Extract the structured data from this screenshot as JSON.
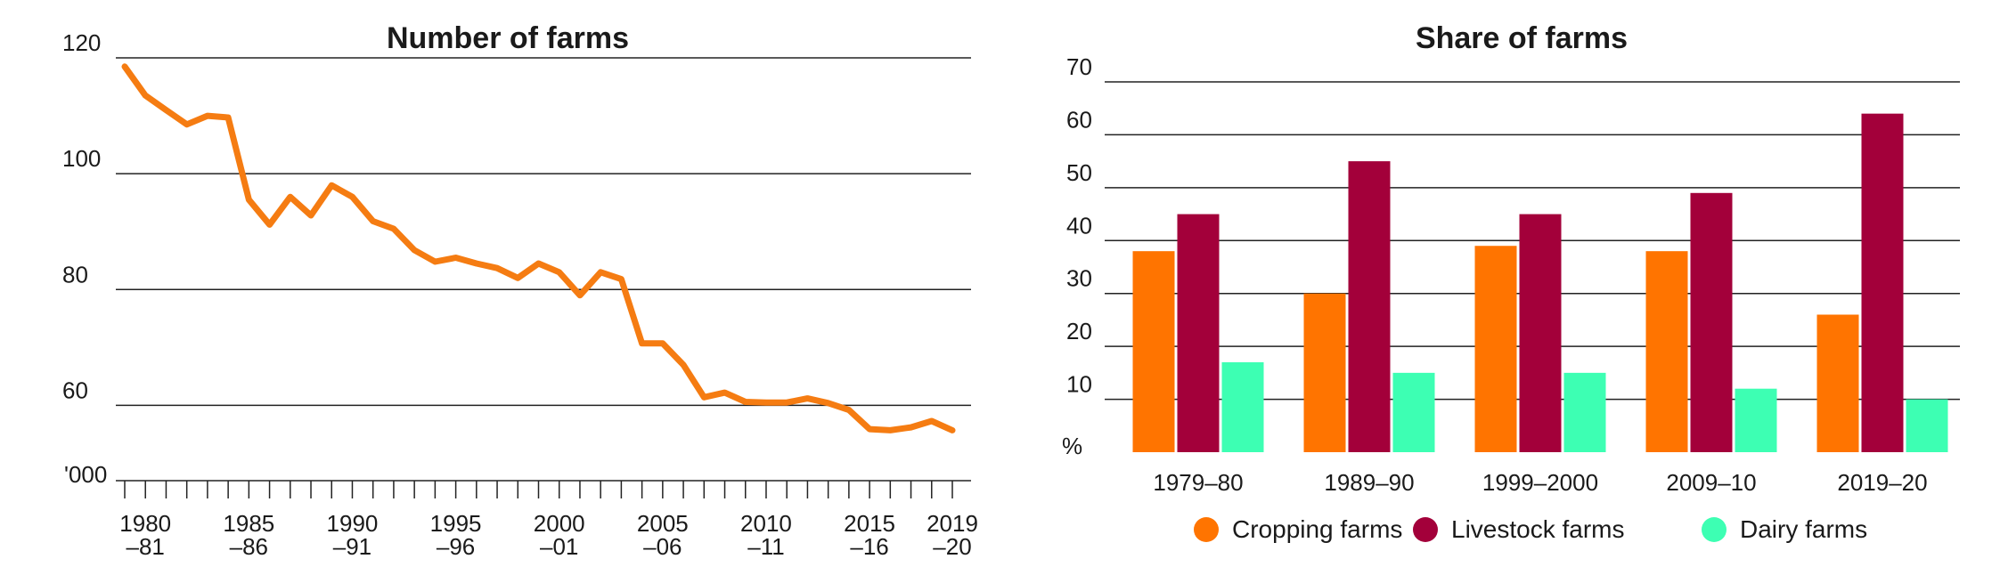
{
  "chart_data": [
    {
      "type": "line",
      "title": "Number of farms",
      "ylabel": "'000",
      "ylim": [
        47,
        122
      ],
      "yticks": [
        120,
        100,
        80,
        60
      ],
      "color": "#F57C12",
      "x_tick_labels": [
        {
          "year": 1980,
          "line1": "1980",
          "line2": "–81"
        },
        {
          "year": 1985,
          "line1": "1985",
          "line2": "–86"
        },
        {
          "year": 1990,
          "line1": "1990",
          "line2": "–91"
        },
        {
          "year": 1995,
          "line1": "1995",
          "line2": "–96"
        },
        {
          "year": 2000,
          "line1": "2000",
          "line2": "–01"
        },
        {
          "year": 2005,
          "line1": "2005",
          "line2": "–06"
        },
        {
          "year": 2010,
          "line1": "2010",
          "line2": "–11"
        },
        {
          "year": 2015,
          "line1": "2015",
          "line2": "–16"
        },
        {
          "year": 2019,
          "line1": "2019",
          "line2": "–20"
        }
      ],
      "x": [
        1979,
        1980,
        1981,
        1982,
        1983,
        1984,
        1985,
        1986,
        1987,
        1988,
        1989,
        1990,
        1991,
        1992,
        1993,
        1994,
        1995,
        1996,
        1997,
        1998,
        1999,
        2000,
        2001,
        2002,
        2003,
        2004,
        2005,
        2006,
        2007,
        2008,
        2009,
        2010,
        2011,
        2012,
        2013,
        2014,
        2015,
        2016,
        2017,
        2018,
        2019
      ],
      "values": [
        118.5,
        113.5,
        111,
        108.5,
        110,
        109.7,
        95.5,
        91.2,
        96,
        92.8,
        98,
        96,
        91.8,
        90.5,
        86.8,
        84.8,
        85.5,
        84.5,
        83.7,
        82,
        84.5,
        83,
        79,
        83,
        81.8,
        70.7,
        70.7,
        67,
        61.4,
        62.2,
        60.6,
        60.5,
        60.5,
        61.2,
        60.4,
        59.2,
        55.9,
        55.7,
        56.2,
        57.3,
        55.7
      ]
    },
    {
      "type": "bar",
      "title": "Share of farms",
      "ylabel": "%",
      "ylim": [
        0,
        70
      ],
      "yticks": [
        10,
        20,
        30,
        40,
        50,
        60,
        70
      ],
      "categories": [
        "1979–80",
        "1989–90",
        "1999–2000",
        "2009–10",
        "2019–20"
      ],
      "series": [
        {
          "name": "Cropping farms",
          "color": "#FF7400",
          "values": [
            38,
            30,
            39,
            38,
            26
          ]
        },
        {
          "name": "Livestock farms",
          "color": "#A3003A",
          "values": [
            45,
            55,
            45,
            49,
            64
          ]
        },
        {
          "name": "Dairy farms",
          "color": "#3DFFB3",
          "values": [
            17,
            15,
            15,
            12,
            10
          ]
        }
      ],
      "legend_position": "bottom"
    }
  ]
}
